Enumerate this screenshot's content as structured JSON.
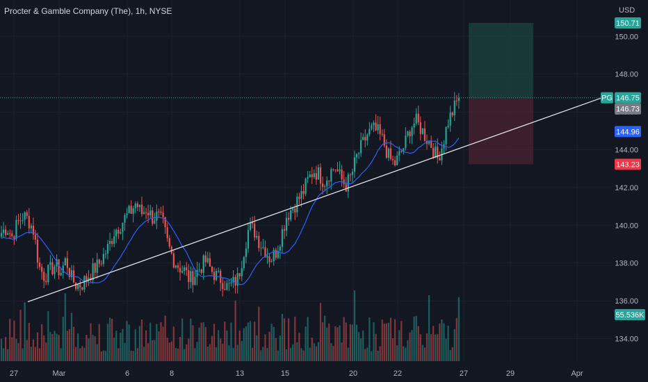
{
  "header": {
    "title": "Procter & Gamble Company (The), 1h, NYSE",
    "currency": "USD"
  },
  "colors": {
    "background": "#131722",
    "grid": "#1e222d",
    "up": "#26a69a",
    "down": "#ef5350",
    "ma_line": "#2962ff",
    "trendline": "#e0e3eb",
    "last_price_line": "#26a69a",
    "target_zone": "#1e5249",
    "stop_zone": "#4e2430"
  },
  "chart_data": {
    "type": "candlestick",
    "symbol": "PG",
    "interval": "1h",
    "y_axis": {
      "ticks": [
        134,
        136,
        138,
        140,
        142,
        144,
        146,
        148,
        150
      ],
      "labels": [
        "134.00",
        "136.00",
        "138.00",
        "140.00",
        "142.00",
        "144.00",
        "146.00",
        "148.00",
        "150.00"
      ],
      "ylim": [
        133.2,
        151.5
      ]
    },
    "x_axis": {
      "labels": [
        "27",
        "Mar",
        "6",
        "8",
        "13",
        "15",
        "20",
        "22",
        "27",
        "29",
        "Apr"
      ]
    },
    "grid": true,
    "price_labels": [
      {
        "text": "150.71",
        "value": 150.71,
        "kind": "target"
      },
      {
        "text": "146.75",
        "value": 146.75,
        "kind": "last",
        "tag": "PG"
      },
      {
        "text": "146.73",
        "value": 146.73,
        "kind": "close"
      },
      {
        "text": "144.96",
        "value": 144.96,
        "kind": "ma"
      },
      {
        "text": "143.23",
        "value": 143.23,
        "kind": "stop"
      }
    ],
    "volume_label": "55.536K",
    "trendline": {
      "from": {
        "bar": 3,
        "price": 135.95
      },
      "to": {
        "bar": 215,
        "price": 146.75
      }
    },
    "position": {
      "entry": 146.75,
      "target": 150.71,
      "stop": 143.23
    },
    "ohlc_anchors": [
      139.6,
      139.9,
      139.4,
      140.1,
      140.5,
      140.3,
      139.7,
      137.8,
      137.3,
      137.6,
      137.9,
      137.5,
      138.2,
      137.2,
      136.8,
      136.9,
      137.3,
      137.6,
      137.9,
      138.4,
      138.9,
      139.7,
      140.0,
      140.4,
      140.7,
      141.2,
      140.6,
      140.9,
      140.4,
      140.5,
      140.1,
      138.9,
      138.2,
      137.8,
      137.6,
      137.1,
      137.4,
      137.8,
      138.1,
      137.6,
      137.3,
      137.1,
      136.7,
      136.9,
      137.2,
      138.6,
      139.9,
      139.7,
      139.1,
      138.7,
      138.2,
      138.6,
      139.5,
      140.5,
      140.9,
      141.3,
      141.7,
      142.4,
      142.9,
      142.7,
      142.3,
      142.8,
      143.1,
      142.5,
      142.1,
      142.6,
      143.6,
      144.2,
      144.8,
      145.1,
      144.9,
      144.4,
      143.6,
      143.2,
      143.7,
      144.3,
      145.2,
      145.5,
      145.1,
      144.6,
      144.2,
      143.5,
      144.3,
      145.5,
      146.1,
      146.75
    ]
  }
}
